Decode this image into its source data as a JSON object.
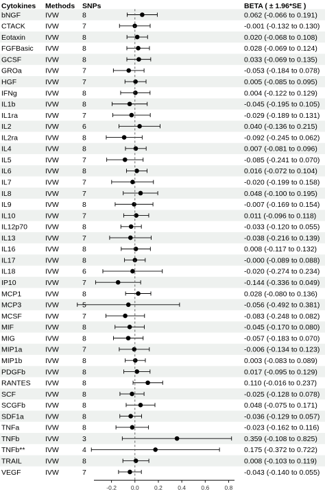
{
  "chart_data": {
    "type": "forest",
    "columns": {
      "cytokine": "Cytokines",
      "method": "Methods",
      "snps": "SNPs",
      "beta": "BETA ( ± 1.96*SE )"
    },
    "xlim": [
      -0.35,
      0.85
    ],
    "xticks": [
      -0.2,
      0,
      0.2,
      0.4,
      0.6,
      0.8
    ],
    "xtick_labels": [
      "-0.2",
      "0.0",
      "0.2",
      "0.4",
      "0.6",
      "0.8"
    ],
    "reference_line": 0,
    "rows": [
      {
        "name": "bNGF",
        "method": "IVW",
        "snps": "8",
        "beta": 0.062,
        "lo": -0.066,
        "hi": 0.191,
        "label": "0.062 (-0.066 to 0.191)"
      },
      {
        "name": "CTACK",
        "method": "IVW",
        "snps": "7",
        "beta": -0.001,
        "lo": -0.132,
        "hi": 0.13,
        "label": "-0.001 (-0.132 to 0.130)"
      },
      {
        "name": "Eotaxin",
        "method": "IVW",
        "snps": "8",
        "beta": 0.02,
        "lo": -0.068,
        "hi": 0.108,
        "label": "0.020 (-0.068 to 0.108)"
      },
      {
        "name": "FGFBasic",
        "method": "IVW",
        "snps": "8",
        "beta": 0.028,
        "lo": -0.069,
        "hi": 0.124,
        "label": "0.028 (-0.069 to 0.124)"
      },
      {
        "name": "GCSF",
        "method": "IVW",
        "snps": "8",
        "beta": 0.033,
        "lo": -0.069,
        "hi": 0.135,
        "label": "0.033 (-0.069 to 0.135)"
      },
      {
        "name": "GROa",
        "method": "IVW",
        "snps": "7",
        "beta": -0.053,
        "lo": -0.184,
        "hi": 0.078,
        "label": "-0.053 (-0.184 to 0.078)"
      },
      {
        "name": "HGF",
        "method": "IVW",
        "snps": "7",
        "beta": 0.005,
        "lo": -0.085,
        "hi": 0.095,
        "label": "0.005 (-0.085 to 0.095)"
      },
      {
        "name": "IFNg",
        "method": "IVW",
        "snps": "8",
        "beta": 0.004,
        "lo": -0.122,
        "hi": 0.129,
        "label": "0.004 (-0.122 to 0.129)"
      },
      {
        "name": "IL1b",
        "method": "IVW",
        "snps": "8",
        "beta": -0.045,
        "lo": -0.195,
        "hi": 0.105,
        "label": "-0.045 (-0.195 to 0.105)"
      },
      {
        "name": "IL1ra",
        "method": "IVW",
        "snps": "7",
        "beta": -0.029,
        "lo": -0.189,
        "hi": 0.131,
        "label": "-0.029 (-0.189 to 0.131)"
      },
      {
        "name": "IL2",
        "method": "IVW",
        "snps": "6",
        "beta": 0.04,
        "lo": -0.136,
        "hi": 0.215,
        "label": "0.040 (-0.136 to 0.215)"
      },
      {
        "name": "IL2ra",
        "method": "IVW",
        "snps": "8",
        "beta": -0.092,
        "lo": -0.245,
        "hi": 0.062,
        "label": "-0.092 (-0.245 to 0.062)"
      },
      {
        "name": "IL4",
        "method": "IVW",
        "snps": "8",
        "beta": 0.007,
        "lo": -0.081,
        "hi": 0.096,
        "label": "0.007 (-0.081 to 0.096)"
      },
      {
        "name": "IL5",
        "method": "IVW",
        "snps": "7",
        "beta": -0.085,
        "lo": -0.241,
        "hi": 0.07,
        "label": "-0.085 (-0.241 to 0.070)"
      },
      {
        "name": "IL6",
        "method": "IVW",
        "snps": "8",
        "beta": 0.016,
        "lo": -0.072,
        "hi": 0.104,
        "label": "0.016 (-0.072 to 0.104)"
      },
      {
        "name": "IL7",
        "method": "IVW",
        "snps": "7",
        "beta": -0.02,
        "lo": -0.199,
        "hi": 0.158,
        "label": "-0.020 (-0.199 to 0.158)"
      },
      {
        "name": "IL8",
        "method": "IVW",
        "snps": "7",
        "beta": 0.048,
        "lo": -0.1,
        "hi": 0.195,
        "label": "0.048 (-0.100 to 0.195)"
      },
      {
        "name": "IL9",
        "method": "IVW",
        "snps": "8",
        "beta": -0.007,
        "lo": -0.169,
        "hi": 0.154,
        "label": "-0.007 (-0.169 to 0.154)"
      },
      {
        "name": "IL10",
        "method": "IVW",
        "snps": "7",
        "beta": 0.011,
        "lo": -0.096,
        "hi": 0.118,
        "label": "0.011 (-0.096 to 0.118)"
      },
      {
        "name": "IL12p70",
        "method": "IVW",
        "snps": "8",
        "beta": -0.033,
        "lo": -0.12,
        "hi": 0.055,
        "label": "-0.033 (-0.120 to 0.055)"
      },
      {
        "name": "IL13",
        "method": "IVW",
        "snps": "7",
        "beta": -0.038,
        "lo": -0.216,
        "hi": 0.139,
        "label": "-0.038 (-0.216 to 0.139)"
      },
      {
        "name": "IL16",
        "method": "IVW",
        "snps": "8",
        "beta": 0.008,
        "lo": -0.117,
        "hi": 0.132,
        "label": "0.008 (-0.117 to 0.132)"
      },
      {
        "name": "IL17",
        "method": "IVW",
        "snps": "8",
        "beta": -0.0,
        "lo": -0.089,
        "hi": 0.088,
        "label": "-0.000 (-0.089 to 0.088)"
      },
      {
        "name": "IL18",
        "method": "IVW",
        "snps": "6",
        "beta": -0.02,
        "lo": -0.274,
        "hi": 0.234,
        "label": "-0.020 (-0.274 to 0.234)"
      },
      {
        "name": "IP10",
        "method": "IVW",
        "snps": "7",
        "beta": -0.144,
        "lo": -0.336,
        "hi": 0.049,
        "label": "-0.144 (-0.336 to 0.049)"
      },
      {
        "name": "MCP1",
        "method": "IVW",
        "snps": "8",
        "beta": 0.028,
        "lo": -0.08,
        "hi": 0.136,
        "label": "0.028 (-0.080 to 0.136)"
      },
      {
        "name": "MCP3",
        "method": "IVW",
        "snps": "5",
        "beta": -0.056,
        "lo": -0.492,
        "hi": 0.381,
        "label": "-0.056 (-0.492 to 0.381)"
      },
      {
        "name": "MCSF",
        "method": "IVW",
        "snps": "7",
        "beta": -0.083,
        "lo": -0.248,
        "hi": 0.082,
        "label": "-0.083 (-0.248 to 0.082)"
      },
      {
        "name": "MIF",
        "method": "IVW",
        "snps": "8",
        "beta": -0.045,
        "lo": -0.17,
        "hi": 0.08,
        "label": "-0.045 (-0.170 to 0.080)"
      },
      {
        "name": "MIG",
        "method": "IVW",
        "snps": "8",
        "beta": -0.057,
        "lo": -0.183,
        "hi": 0.07,
        "label": "-0.057 (-0.183 to 0.070)"
      },
      {
        "name": "MIP1a",
        "method": "IVW",
        "snps": "7",
        "beta": -0.006,
        "lo": -0.134,
        "hi": 0.123,
        "label": "-0.006 (-0.134 to 0.123)"
      },
      {
        "name": "MIP1b",
        "method": "IVW",
        "snps": "8",
        "beta": 0.003,
        "lo": -0.083,
        "hi": 0.089,
        "label": "0.003 (-0.083 to 0.089)"
      },
      {
        "name": "PDGFb",
        "method": "IVW",
        "snps": "8",
        "beta": 0.017,
        "lo": -0.095,
        "hi": 0.129,
        "label": "0.017 (-0.095 to 0.129)"
      },
      {
        "name": "RANTES",
        "method": "IVW",
        "snps": "8",
        "beta": 0.11,
        "lo": -0.016,
        "hi": 0.237,
        "label": "0.110 (-0.016 to 0.237)"
      },
      {
        "name": "SCF",
        "method": "IVW",
        "snps": "8",
        "beta": -0.025,
        "lo": -0.128,
        "hi": 0.078,
        "label": "-0.025 (-0.128 to 0.078)"
      },
      {
        "name": "SCGFb",
        "method": "IVW",
        "snps": "8",
        "beta": 0.048,
        "lo": -0.075,
        "hi": 0.171,
        "label": "0.048 (-0.075 to 0.171)"
      },
      {
        "name": "SDF1a",
        "method": "IVW",
        "snps": "8",
        "beta": -0.036,
        "lo": -0.129,
        "hi": 0.057,
        "label": "-0.036 (-0.129 to 0.057)"
      },
      {
        "name": "TNFa",
        "method": "IVW",
        "snps": "8",
        "beta": -0.023,
        "lo": -0.162,
        "hi": 0.116,
        "label": "-0.023 (-0.162 to 0.116)"
      },
      {
        "name": "TNFb",
        "method": "IVW",
        "snps": "3",
        "beta": 0.359,
        "lo": -0.108,
        "hi": 0.825,
        "label": "0.359 (-0.108 to 0.825)"
      },
      {
        "name": "TNFb**",
        "method": "IVW",
        "snps": "4",
        "beta": 0.175,
        "lo": -0.372,
        "hi": 0.722,
        "label": "0.175 (-0.372 to 0.722)"
      },
      {
        "name": "TRAIL",
        "method": "IVW",
        "snps": "8",
        "beta": 0.008,
        "lo": -0.103,
        "hi": 0.119,
        "label": "0.008 (-0.103 to 0.119)"
      },
      {
        "name": "VEGF",
        "method": "IVW",
        "snps": "7",
        "beta": -0.043,
        "lo": -0.14,
        "hi": 0.055,
        "label": "-0.043 (-0.140 to 0.055)"
      }
    ],
    "colors": {
      "stripe": "#eef1ef",
      "marker": "#000000",
      "line": "#000000",
      "reference": "#555555"
    }
  }
}
